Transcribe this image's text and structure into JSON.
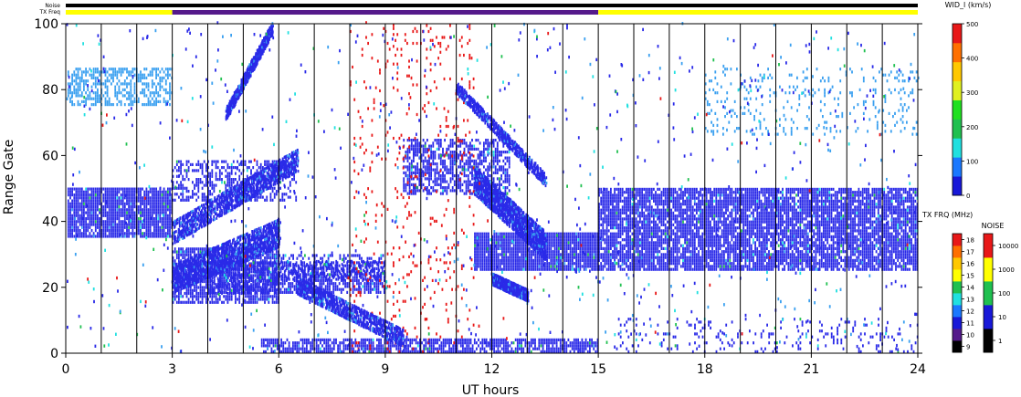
{
  "chart_data": {
    "type": "heatmap",
    "xlabel": "UT hours",
    "ylabel": "Range Gate",
    "xlim": [
      0,
      24
    ],
    "ylim": [
      0,
      100
    ],
    "xticks": [
      "0",
      "3",
      "6",
      "9",
      "12",
      "15",
      "18",
      "21",
      "24"
    ],
    "yticks": [
      "0",
      "20",
      "40",
      "60",
      "80",
      "100"
    ],
    "top_bars": [
      {
        "label": "Noise",
        "segments": [
          {
            "from": 0,
            "to": 24,
            "color": "#000000"
          }
        ]
      },
      {
        "label": "TX Freq",
        "segments": [
          {
            "from": 0,
            "to": 3,
            "color": "#ffff00"
          },
          {
            "from": 3,
            "to": 15,
            "color": "#551a8b"
          },
          {
            "from": 15,
            "to": 24,
            "color": "#ffff00"
          }
        ]
      }
    ],
    "vertical_lines_hours": [
      1,
      2,
      3,
      4,
      5,
      6,
      7,
      8,
      9,
      10,
      11,
      12,
      13,
      14,
      15,
      16,
      17,
      18,
      19,
      20,
      21,
      22,
      23
    ],
    "bands": [
      {
        "t0": 0.05,
        "t1": 3.0,
        "r0": 35,
        "r1": 50,
        "density": 0.9,
        "color": "#2a2ae8"
      },
      {
        "t0": 0.05,
        "t1": 3.0,
        "r0": 75,
        "r1": 86,
        "density": 0.55,
        "color": "#3aa0f0"
      },
      {
        "t0": 3.0,
        "t1": 6.0,
        "r0": 15,
        "r1": 32,
        "density": 0.8,
        "color": "#2a2ae8"
      },
      {
        "t0": 4.0,
        "t1": 9.0,
        "r0": 18,
        "r1": 27,
        "density": 0.7,
        "color": "#2a2ae8"
      },
      {
        "t0": 3.0,
        "t1": 6.5,
        "r0": 46,
        "r1": 58,
        "density": 0.45,
        "color": "#2a2ae8"
      },
      {
        "t0": 6.0,
        "t1": 9.0,
        "r0": 22,
        "r1": 30,
        "density": 0.45,
        "color": "#2a2ae8"
      },
      {
        "t0": 5.5,
        "t1": 15.0,
        "r0": 0,
        "r1": 4,
        "density": 0.75,
        "color": "#2a2ae8"
      },
      {
        "t0": 9.5,
        "t1": 12.5,
        "r0": 48,
        "r1": 65,
        "density": 0.6,
        "color": "#2a2ae8"
      },
      {
        "t0": 11.5,
        "t1": 15.0,
        "r0": 25,
        "r1": 36,
        "density": 0.95,
        "color": "#2a2ae8"
      },
      {
        "t0": 15.0,
        "t1": 24.0,
        "r0": 25,
        "r1": 50,
        "density": 0.85,
        "color": "#2a2ae8"
      },
      {
        "t0": 15.5,
        "t1": 24.0,
        "r0": 0,
        "r1": 10,
        "density": 0.12,
        "color": "#2a2ae8"
      },
      {
        "t0": 18.0,
        "t1": 24.0,
        "r0": 66,
        "r1": 86,
        "density": 0.12,
        "color": "#3aa0f0"
      },
      {
        "t0": 8.0,
        "t1": 11.5,
        "r0": 0,
        "r1": 100,
        "density": 0.05,
        "color": "#e81818"
      }
    ],
    "diagonals": [
      {
        "t0": 3.0,
        "r0": 36,
        "t1": 6.5,
        "r1": 58,
        "width": 4
      },
      {
        "t0": 3.0,
        "r0": 22,
        "t1": 6.0,
        "r1": 36,
        "width": 5
      },
      {
        "t0": 4.5,
        "r0": 72,
        "t1": 5.8,
        "r1": 98,
        "width": 2
      },
      {
        "t0": 6.5,
        "r0": 20,
        "t1": 9.5,
        "r1": 4,
        "width": 3
      },
      {
        "t0": 11.0,
        "r0": 80,
        "t1": 13.5,
        "r1": 52,
        "width": 2
      },
      {
        "t0": 11.5,
        "r0": 52,
        "t1": 13.5,
        "r1": 32,
        "width": 5
      },
      {
        "t0": 12.0,
        "r0": 22,
        "t1": 13.0,
        "r1": 17,
        "width": 2
      }
    ],
    "colorbars": [
      {
        "title": "WID_l (km/s)",
        "ticks": [
          "500",
          "400",
          "300",
          "200",
          "100",
          "0"
        ],
        "colors": [
          "#1818d8",
          "#1a78ff",
          "#20e0e0",
          "#20c050",
          "#20e020",
          "#e0f020",
          "#ffc800",
          "#ff7000",
          "#e81818"
        ]
      },
      {
        "title": "TX FRQ (MHz)",
        "ticks": [
          "18",
          "17",
          "16",
          "15",
          "14",
          "13",
          "12",
          "11",
          "10",
          "9"
        ],
        "colors": [
          "#000000",
          "#551a8b",
          "#1818d8",
          "#1a78ff",
          "#20e0e0",
          "#20c050",
          "#ffff00",
          "#ffc800",
          "#ff7000",
          "#e81818"
        ]
      },
      {
        "title": "NOISE",
        "ticks": [
          "10000",
          "1000",
          "100",
          "10",
          "1"
        ],
        "colors": [
          "#000000",
          "#1818d8",
          "#20c050",
          "#ffff00",
          "#e81818"
        ]
      }
    ]
  }
}
